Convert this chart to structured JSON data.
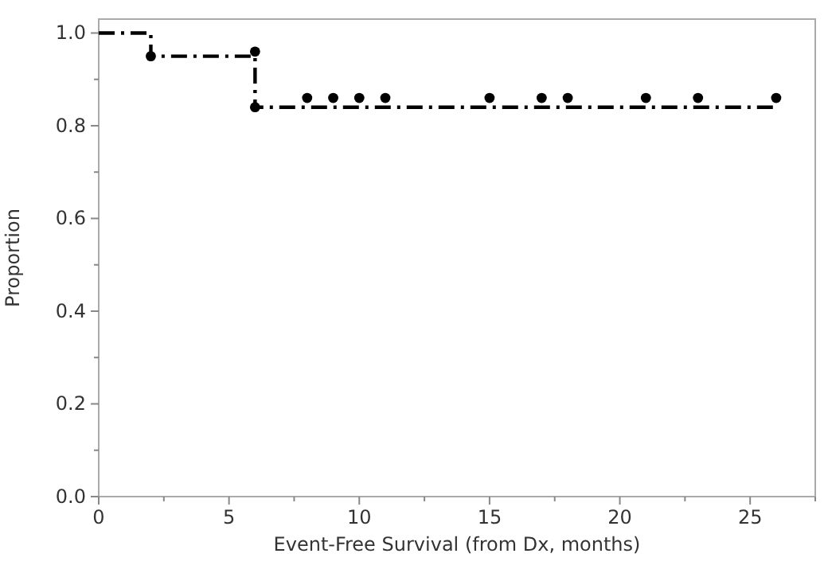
{
  "chart_data": {
    "type": "step",
    "xlabel": "Event-Free Survival (from Dx, months)",
    "ylabel": "Proportion",
    "xlim": [
      0,
      27.5
    ],
    "ylim": [
      0,
      1.03
    ],
    "xticks": [
      0,
      {
        "value": 2.5,
        "label": null
      },
      5,
      {
        "value": 7.5,
        "label": null
      },
      10,
      {
        "value": 12.5,
        "label": null
      },
      15,
      {
        "value": 17.5,
        "label": null
      },
      20,
      {
        "value": 22.5,
        "label": null
      },
      25,
      {
        "value": 27.5,
        "label": null
      }
    ],
    "yticks": [
      {
        "value": 0,
        "label": "0.0"
      },
      {
        "value": 0.1,
        "label": null
      },
      0.2,
      {
        "value": 0.3,
        "label": null
      },
      0.4,
      {
        "value": 0.5,
        "label": null
      },
      0.6,
      {
        "value": 0.7,
        "label": null
      },
      0.8,
      {
        "value": 0.9,
        "label": null
      },
      {
        "value": 1,
        "label": "1.0"
      }
    ],
    "grid": false,
    "series": [
      {
        "color": "#000000",
        "line_style": "dashdot",
        "marker": "none",
        "x": [
          0,
          2,
          6,
          26
        ],
        "values": [
          1,
          0.95,
          0.84,
          0.84
        ]
      },
      {
        "type": "scatter",
        "color": "#000000",
        "marker": "circle",
        "x": [
          2,
          6,
          6,
          8,
          9,
          10,
          11,
          15,
          17,
          18,
          21,
          23,
          26
        ],
        "values": [
          0.95,
          0.96,
          0.84,
          0.86,
          0.86,
          0.86,
          0.86,
          0.86,
          0.86,
          0.86,
          0.86,
          0.86,
          0.86
        ]
      }
    ]
  }
}
